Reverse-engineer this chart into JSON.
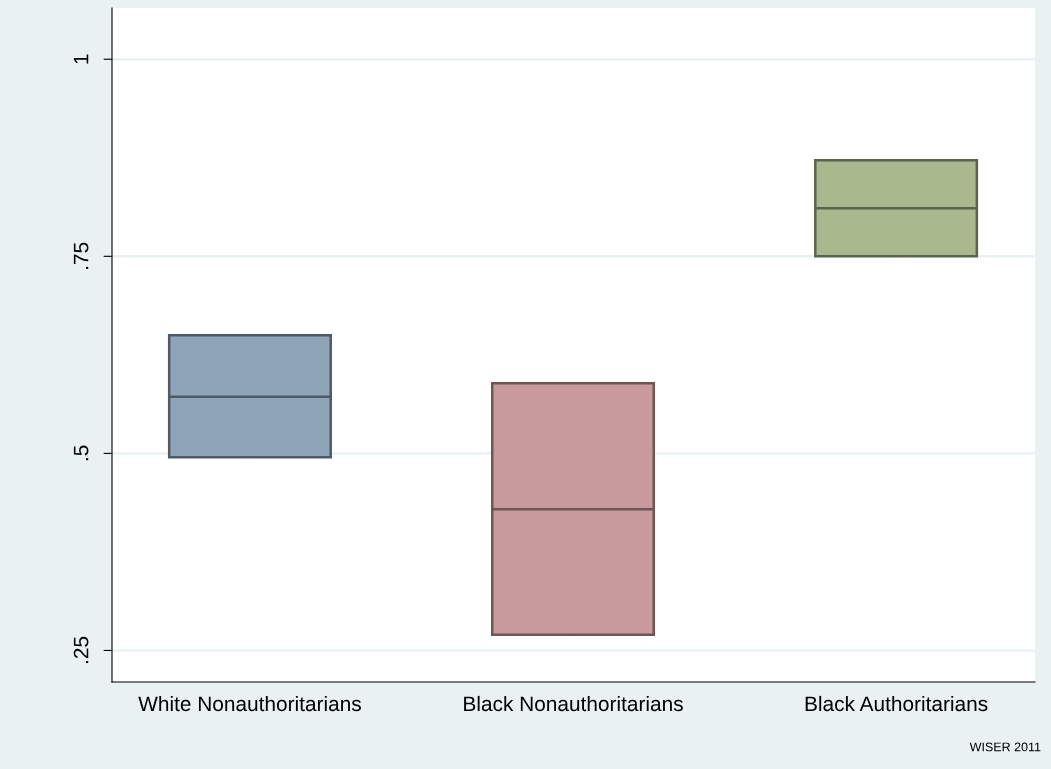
{
  "chart_data": {
    "type": "box",
    "categories": [
      "White Nonauthoritarians",
      "Black Nonauthoritarians",
      "Black Authoritarians"
    ],
    "boxes": [
      {
        "low": 0.495,
        "q1": 0.495,
        "median": 0.572,
        "q3": 0.65,
        "high": 0.65
      },
      {
        "low": 0.27,
        "q1": 0.27,
        "median": 0.429,
        "q3": 0.589,
        "high": 0.589
      },
      {
        "low": 0.75,
        "q1": 0.75,
        "median": 0.811,
        "q3": 0.872,
        "high": 0.872
      }
    ],
    "colors": [
      "#8fa4b8",
      "#c89a9d",
      "#a8b98e"
    ],
    "ylim": [
      0.21,
      1.065
    ],
    "yticks": [
      {
        "value": 0.25,
        "label": ".25"
      },
      {
        "value": 0.5,
        "label": ".5"
      },
      {
        "value": 0.75,
        "label": ".75"
      },
      {
        "value": 1,
        "label": "1"
      }
    ],
    "grid": "y",
    "legend": false,
    "annotations": [
      "WISER 2011"
    ]
  }
}
